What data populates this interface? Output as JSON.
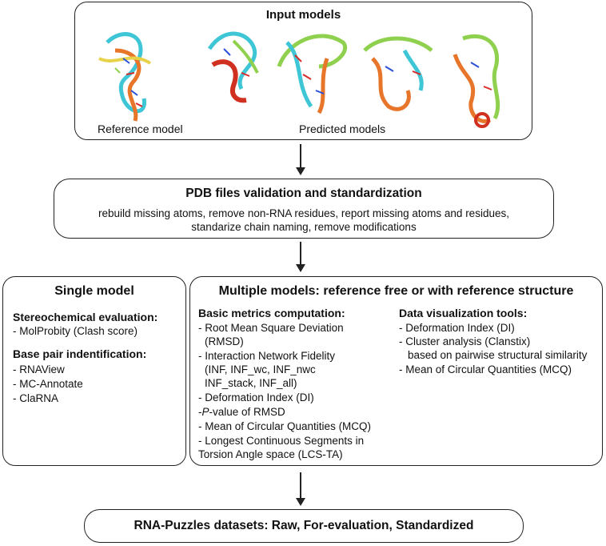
{
  "input_models": {
    "title": "Input models",
    "reference_label": "Reference model",
    "predicted_label": "Predicted models"
  },
  "validation": {
    "title": "PDB files validation and standardization",
    "line1": "rebuild missing atoms, remove non-RNA residues, report missing atoms and residues,",
    "line2": "standarize chain naming, remove modifications"
  },
  "single_model": {
    "title": "Single model",
    "stereo_heading": "Stereochemical evaluation:",
    "stereo_items": [
      "- MolProbity (Clash score)"
    ],
    "basepair_heading": "Base pair indentification:",
    "basepair_items": [
      "- RNAView",
      "- MC-Annotate",
      "- ClaRNA"
    ]
  },
  "multiple_models": {
    "title": "Multiple models: reference free or with reference structure",
    "basic_heading": "Basic metrics computation:",
    "basic_lines": [
      "- Root Mean Square Deviation",
      "  (RMSD)",
      "- Interaction Network Fidelity",
      "  (INF, INF_wc, INF_nwc",
      "  INF_stack, INF_all)",
      "- Deformation Index (DI)",
      "- P-value of RMSD",
      "- Mean of Circular Quantities (MCQ)",
      "- Longest Continuous Segments in",
      "  Torsion Angle space (LCS-TA)"
    ],
    "pvalue_prefix": "- ",
    "pvalue_italic": "P",
    "pvalue_rest": "-value of RMSD",
    "viz_heading": "Data visualization tools:",
    "viz_lines": [
      "- Deformation Index (DI)",
      "- Cluster analysis (Clanstix)",
      "  based on pairwise structural similarity",
      "- Mean of Circular Quantities (MCQ)"
    ]
  },
  "output": {
    "title": "RNA-Puzzles datasets: Raw, For-evaluation, Standardized"
  },
  "colors": {
    "ribbon_green": "#8fd14f",
    "ribbon_cyan": "#3fc6d6",
    "ribbon_orange": "#e8762a",
    "ribbon_red": "#d0301f",
    "ribbon_yellow": "#e8d24a",
    "base_blue": "#2a4fd8",
    "base_red": "#d82a2a"
  }
}
